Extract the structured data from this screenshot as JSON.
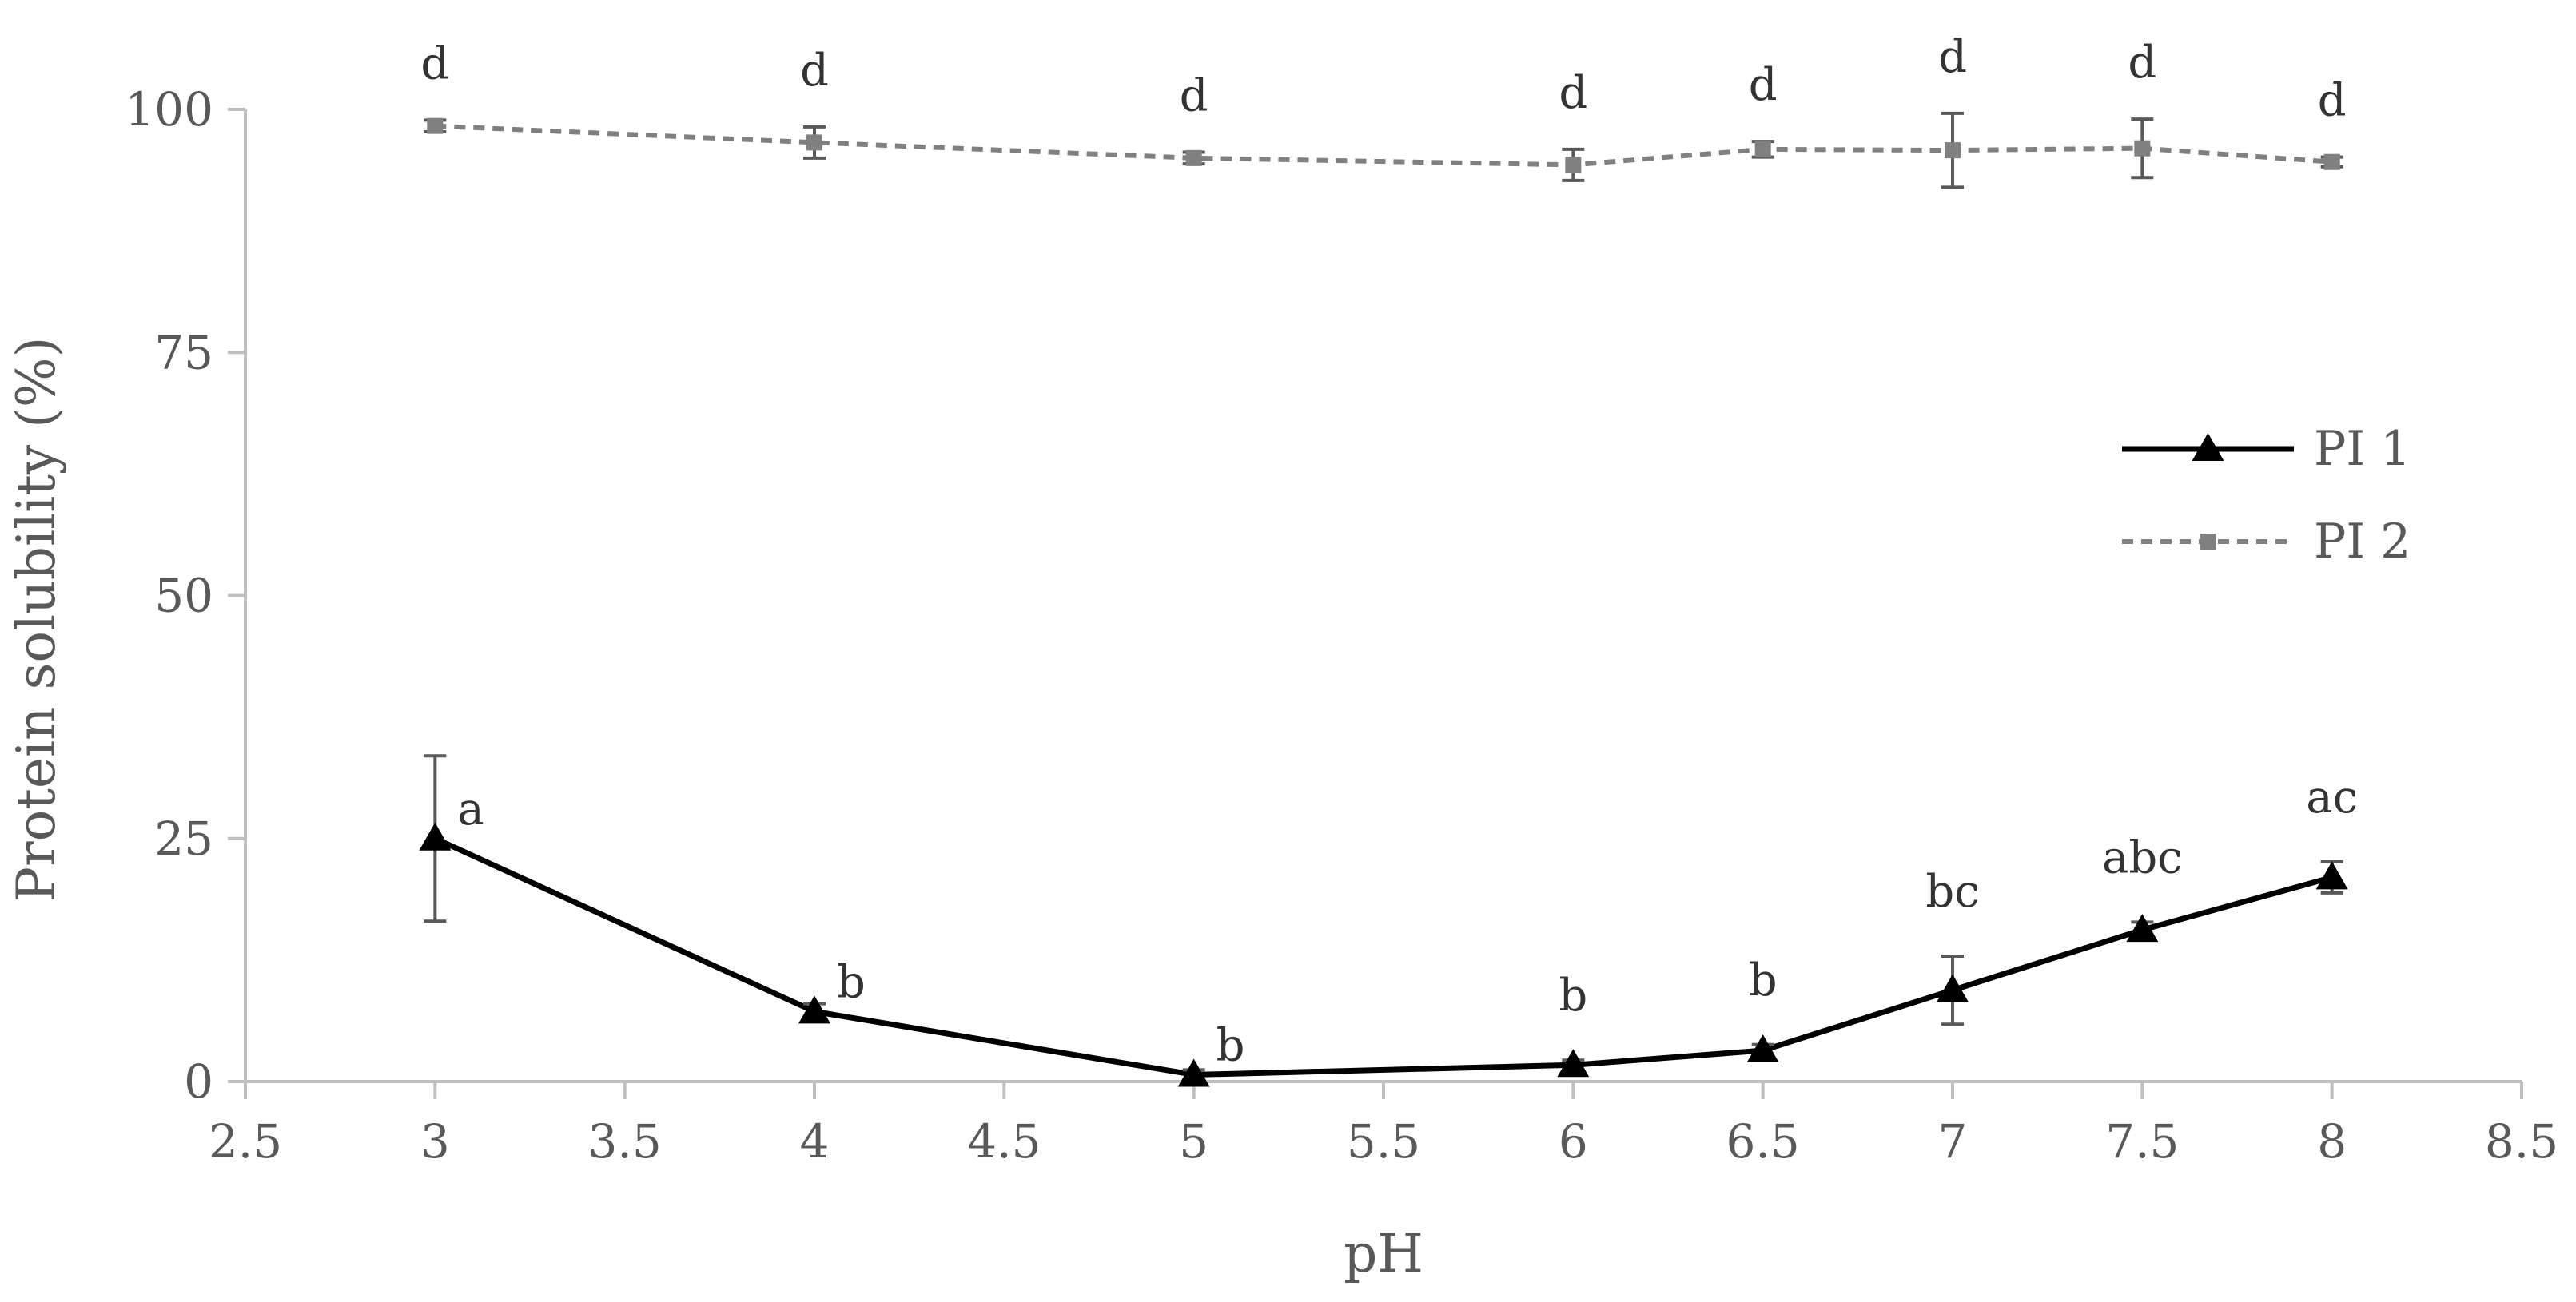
{
  "chart_data": {
    "type": "line",
    "title": "",
    "xlabel": "pH",
    "ylabel": "Protein solubility (%)",
    "xlim": [
      2.5,
      8.5
    ],
    "ylim": [
      0,
      100
    ],
    "x_ticks": [
      "2.5",
      "3",
      "3.5",
      "4",
      "4.5",
      "5",
      "5.5",
      "6",
      "6.5",
      "7",
      "7.5",
      "8",
      "8.5"
    ],
    "y_ticks": [
      "0",
      "25",
      "50",
      "75",
      "100"
    ],
    "grid": false,
    "legend_position": "right",
    "series": [
      {
        "name": "PI 1",
        "color": "#000000",
        "line_style": "solid",
        "marker": "triangle",
        "x": [
          3,
          4,
          5,
          6,
          6.5,
          7,
          7.5,
          8
        ],
        "y": [
          25.0,
          7.2,
          0.7,
          1.7,
          3.2,
          9.4,
          15.6,
          21.0
        ],
        "error": [
          8.5,
          0.8,
          0.5,
          0.5,
          0.6,
          3.5,
          0.8,
          1.6
        ],
        "letters": [
          "a",
          "b",
          "b",
          "b",
          "b",
          "bc",
          "abc",
          "ac"
        ]
      },
      {
        "name": "PI 2",
        "color": "#808080",
        "line_style": "dashed",
        "marker": "square",
        "x": [
          3,
          4,
          5,
          6,
          6.5,
          7,
          7.5,
          8
        ],
        "y": [
          98.3,
          96.6,
          95.0,
          94.3,
          95.9,
          95.8,
          96.0,
          94.6
        ],
        "error": [
          0.6,
          1.6,
          0.6,
          1.6,
          0.8,
          3.8,
          3.0,
          0.5
        ],
        "letters": [
          "d",
          "d",
          "d",
          "d",
          "d",
          "d",
          "d",
          "d"
        ]
      }
    ]
  }
}
